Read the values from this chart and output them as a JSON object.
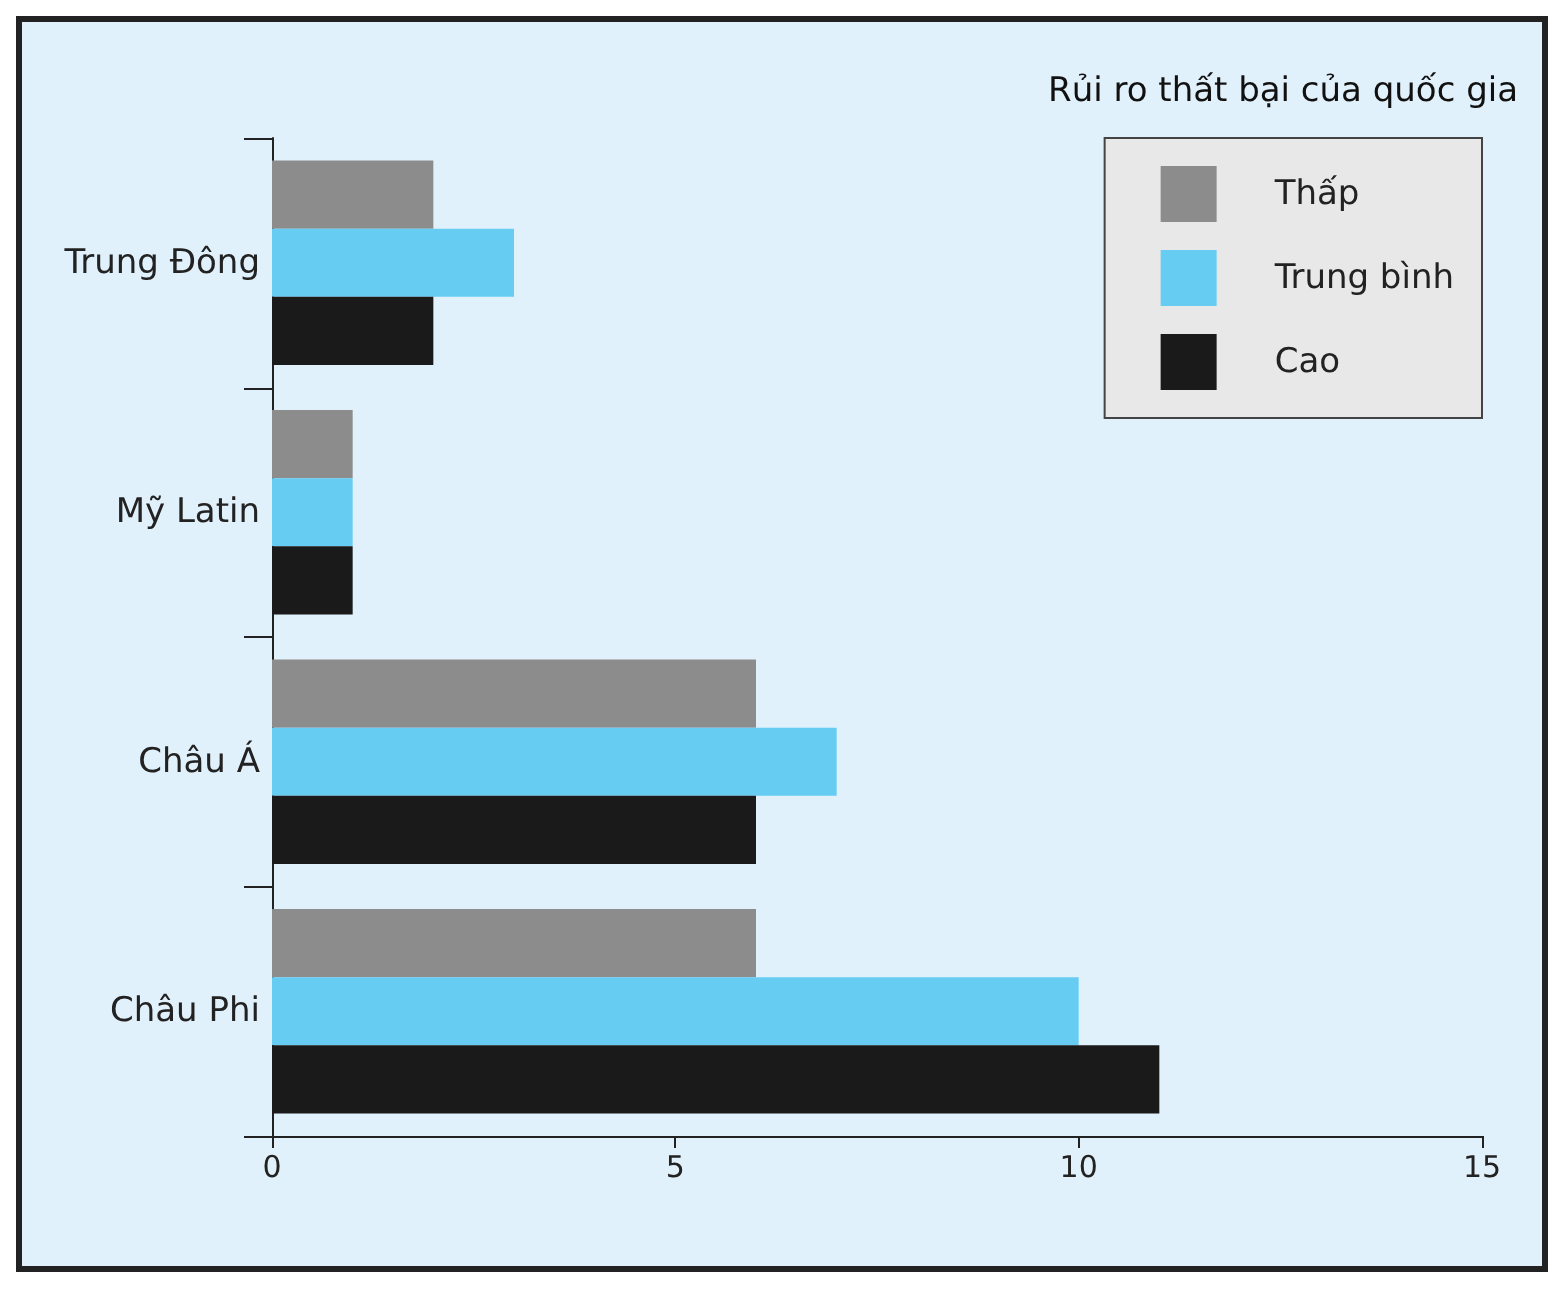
{
  "chart_data": {
    "type": "bar",
    "orientation": "horizontal",
    "categories": [
      "Trung Đông",
      "Mỹ Latin",
      "Châu Á",
      "Châu Phi"
    ],
    "series": [
      {
        "name": "Thấp",
        "color": "#8c8c8c",
        "values": [
          2,
          1,
          6,
          6
        ]
      },
      {
        "name": "Trung bình",
        "color": "#66ccf2",
        "values": [
          3,
          1,
          7,
          10
        ]
      },
      {
        "name": "Cao",
        "color": "#1a1a1a",
        "values": [
          2,
          1,
          6,
          11
        ]
      }
    ],
    "legend_title": "Rủi ro thất bại của quốc gia",
    "xlim": [
      0,
      15
    ],
    "xticks": [
      0,
      5,
      10,
      15
    ],
    "grid": false,
    "legend": "top right"
  }
}
